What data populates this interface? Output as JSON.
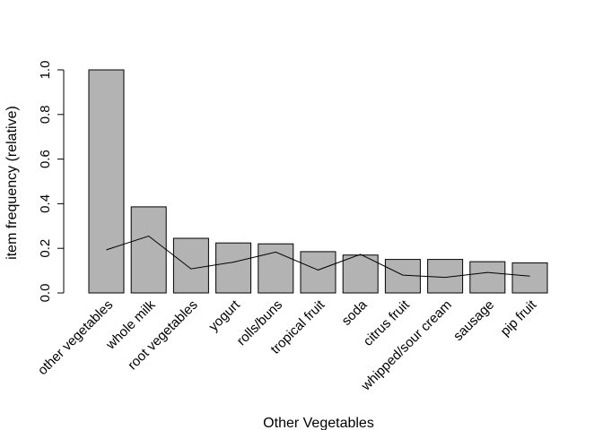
{
  "chart_data": {
    "type": "bar",
    "title": "",
    "xlabel": "Other Vegetables",
    "ylabel": "item frequency (relative)",
    "ylim": [
      0,
      1.0
    ],
    "yticks": [
      "0.0",
      "0.2",
      "0.4",
      "0.6",
      "0.8",
      "1.0"
    ],
    "grid": false,
    "categories": [
      "other vegetables",
      "whole milk",
      "root vegetables",
      "yogurt",
      "rolls/buns",
      "tropical fruit",
      "soda",
      "citrus fruit",
      "whipped/sour cream",
      "sausage",
      "pip fruit"
    ],
    "series": [
      {
        "type": "bar",
        "values": [
          1.0,
          0.386,
          0.245,
          0.224,
          0.22,
          0.185,
          0.17,
          0.15,
          0.15,
          0.14,
          0.135
        ],
        "color": "#b3b3b3"
      },
      {
        "type": "line",
        "values": [
          0.193,
          0.255,
          0.108,
          0.138,
          0.183,
          0.103,
          0.173,
          0.08,
          0.07,
          0.092,
          0.075
        ],
        "color": "#000000"
      }
    ]
  }
}
